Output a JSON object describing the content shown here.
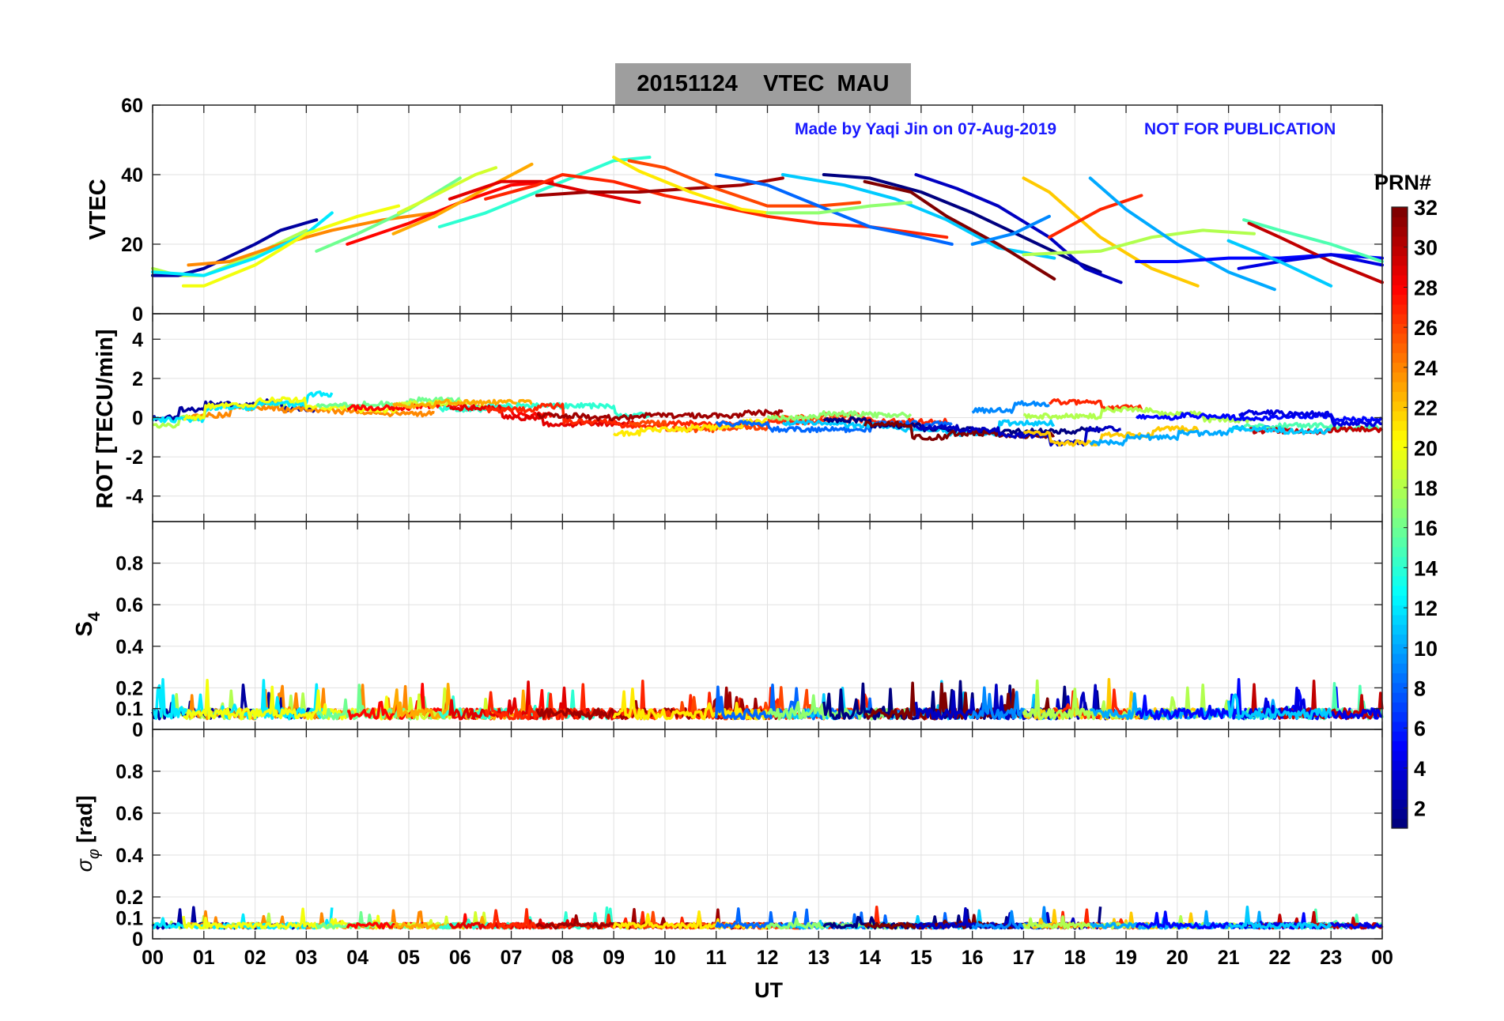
{
  "title": "20151124    VTEC  MAU",
  "annotation": {
    "credit": "Made by Yaqi Jin on 07-Aug-2019",
    "notice": "NOT FOR PUBLICATION",
    "color": "#1a1aff"
  },
  "colorbar": {
    "label": "PRN#",
    "ticks": [
      "2",
      "4",
      "6",
      "8",
      "10",
      "12",
      "14",
      "16",
      "18",
      "20",
      "22",
      "24",
      "26",
      "28",
      "30",
      "32"
    ],
    "colormap": "jet",
    "range": [
      1,
      32
    ]
  },
  "xaxis": {
    "label": "UT",
    "ticks": [
      "00",
      "01",
      "02",
      "03",
      "04",
      "05",
      "06",
      "07",
      "08",
      "09",
      "10",
      "11",
      "12",
      "13",
      "14",
      "15",
      "16",
      "17",
      "18",
      "19",
      "20",
      "21",
      "22",
      "23",
      "00"
    ],
    "range": [
      0,
      24
    ]
  },
  "panels": {
    "vtec": {
      "ylabel": "VTEC",
      "ylim": [
        0,
        60
      ],
      "yticks": [
        "0",
        "20",
        "40",
        "60"
      ]
    },
    "rot": {
      "ylabel": "ROT [TECU/min]",
      "ylim": [
        -5.3,
        5.3
      ],
      "yticks": [
        "-4",
        "-2",
        "0",
        "2",
        "4"
      ]
    },
    "s4": {
      "ylabel": "S",
      "ylabel_sub": "4",
      "ylim": [
        0,
        1
      ],
      "yticks": [
        "0",
        "0.1",
        "0.2",
        "0.4",
        "0.6",
        "0.8"
      ]
    },
    "sigma": {
      "ylabel_greek": "σ",
      "ylabel_sub": "φ",
      "ylabel_unit": " [rad]",
      "ylim": [
        0,
        1
      ],
      "yticks": [
        "0",
        "0.1",
        "0.2",
        "0.4",
        "0.6",
        "0.8"
      ]
    }
  },
  "chart_data": {
    "type": "line",
    "title": "20151124    VTEC  MAU",
    "xlabel": "UT",
    "x_range_hours": [
      0,
      24
    ],
    "grid": true,
    "color_by": "PRN#",
    "legend": "colorbar right",
    "series": [
      {
        "name": "PRN 18",
        "x": [
          0.0,
          0.5,
          1.0,
          2.0,
          3.0
        ],
        "vtec": [
          13,
          11,
          11,
          17,
          24
        ]
      },
      {
        "name": "PRN 2",
        "x": [
          0.0,
          0.5,
          1.0,
          2.0,
          2.5,
          3.2
        ],
        "vtec": [
          11,
          11,
          13,
          20,
          24,
          27
        ]
      },
      {
        "name": "PRN 24",
        "x": [
          0.7,
          1.5,
          2.5,
          3.5,
          4.5,
          5.5
        ],
        "vtec": [
          14,
          15,
          20,
          24,
          27,
          29
        ]
      },
      {
        "name": "PRN 12",
        "x": [
          0.0,
          1.0,
          2.0,
          3.0,
          3.5
        ],
        "vtec": [
          12,
          11,
          16,
          23,
          29
        ]
      },
      {
        "name": "PRN 20",
        "x": [
          0.6,
          1.0,
          2.0,
          3.0,
          4.0,
          4.8
        ],
        "vtec": [
          8,
          8,
          14,
          23,
          28,
          31
        ]
      },
      {
        "name": "PRN 16",
        "x": [
          3.2,
          4.0,
          5.0,
          6.0
        ],
        "vtec": [
          18,
          23,
          30,
          39
        ]
      },
      {
        "name": "PRN 28",
        "x": [
          3.8,
          5.0,
          6.0,
          7.0,
          7.8
        ],
        "vtec": [
          20,
          26,
          32,
          37,
          38
        ]
      },
      {
        "name": "PRN 19",
        "x": [
          4.8,
          5.5,
          6.3,
          6.7
        ],
        "vtec": [
          29,
          34,
          40,
          42
        ]
      },
      {
        "name": "PRN 23",
        "x": [
          4.7,
          5.5,
          6.5,
          7.4
        ],
        "vtec": [
          23,
          28,
          36,
          43
        ]
      },
      {
        "name": "PRN 14",
        "x": [
          5.6,
          6.5,
          7.5,
          8.5,
          9.0,
          9.7
        ],
        "vtec": [
          25,
          29,
          35,
          41,
          44,
          45
        ]
      },
      {
        "name": "PRN 29",
        "x": [
          5.8,
          6.8,
          7.6,
          8.5,
          9.5
        ],
        "vtec": [
          33,
          38,
          38,
          35,
          32
        ]
      },
      {
        "name": "PRN 27",
        "x": [
          6.5,
          7.5,
          8.0,
          9.0,
          10.0,
          11.0,
          12.0,
          13.0,
          14.0,
          15.0,
          15.5
        ],
        "vtec": [
          33,
          37,
          40,
          38,
          34,
          31,
          28,
          26,
          25,
          23,
          22
        ]
      },
      {
        "name": "PRN 31",
        "x": [
          7.5,
          8.5,
          9.5,
          10.5,
          11.5,
          12.3
        ],
        "vtec": [
          34,
          35,
          35,
          36,
          37,
          39
        ]
      },
      {
        "name": "PRN 26",
        "x": [
          9.3,
          10.0,
          11.0,
          12.0,
          13.0,
          13.8
        ],
        "vtec": [
          44,
          42,
          36,
          31,
          31,
          32
        ]
      },
      {
        "name": "PRN 21",
        "x": [
          9.0,
          9.5,
          10.5,
          11.5,
          12.0
        ],
        "vtec": [
          45,
          41,
          35,
          30,
          29
        ]
      },
      {
        "name": "PRN 8",
        "x": [
          11.0,
          12.0,
          13.0,
          14.0,
          15.0,
          15.6
        ],
        "vtec": [
          40,
          37,
          31,
          25,
          22,
          20
        ]
      },
      {
        "name": "PRN 11",
        "x": [
          12.3,
          13.5,
          14.5,
          15.5,
          16.5,
          17.6
        ],
        "vtec": [
          40,
          37,
          33,
          27,
          19,
          16
        ]
      },
      {
        "name": "PRN 17",
        "x": [
          12.0,
          13.0,
          14.0,
          14.8
        ],
        "vtec": [
          29,
          29,
          31,
          32
        ]
      },
      {
        "name": "PRN 1",
        "x": [
          13.1,
          14.0,
          15.0,
          16.0,
          17.0,
          18.0,
          18.5
        ],
        "vtec": [
          40,
          39,
          35,
          29,
          22,
          15,
          12
        ]
      },
      {
        "name": "PRN 32",
        "x": [
          13.9,
          14.8,
          15.5,
          16.5,
          17.6
        ],
        "vtec": [
          38,
          35,
          28,
          20,
          10
        ]
      },
      {
        "name": "PRN 3",
        "x": [
          14.9,
          15.7,
          16.5,
          17.5,
          18.2,
          18.9
        ],
        "vtec": [
          40,
          36,
          31,
          22,
          13,
          9
        ]
      },
      {
        "name": "PRN 9",
        "x": [
          16.0,
          16.8,
          17.5
        ],
        "vtec": [
          20,
          23,
          28
        ]
      },
      {
        "name": "PRN 22",
        "x": [
          17.0,
          17.5,
          18.5,
          19.5,
          20.4
        ],
        "vtec": [
          39,
          35,
          22,
          13,
          8
        ]
      },
      {
        "name": "PRN 27b",
        "x": [
          17.5,
          18.5,
          19.3
        ],
        "vtec": [
          22,
          30,
          34
        ]
      },
      {
        "name": "PRN 18b",
        "x": [
          17.0,
          18.5,
          19.5,
          20.5,
          21.5
        ],
        "vtec": [
          17,
          18,
          22,
          24,
          23
        ]
      },
      {
        "name": "PRN 10",
        "x": [
          18.3,
          19.0,
          20.0,
          21.0,
          21.9
        ],
        "vtec": [
          39,
          30,
          20,
          12,
          7
        ]
      },
      {
        "name": "PRN 5",
        "x": [
          19.2,
          20.0,
          21.0,
          22.0,
          23.0,
          24.0
        ],
        "vtec": [
          15,
          15,
          16,
          16,
          17,
          16
        ]
      },
      {
        "name": "PRN 15",
        "x": [
          21.3,
          22.0,
          23.0,
          24.0
        ],
        "vtec": [
          27,
          24,
          20,
          15
        ]
      },
      {
        "name": "PRN 30",
        "x": [
          21.4,
          22.0,
          23.0,
          24.0
        ],
        "vtec": [
          26,
          22,
          15,
          9
        ]
      },
      {
        "name": "PRN 4",
        "x": [
          21.2,
          22.0,
          23.0,
          24.0
        ],
        "vtec": [
          13,
          15,
          17,
          14
        ]
      },
      {
        "name": "PRN 11b",
        "x": [
          21.0,
          22.0,
          23.0
        ],
        "vtec": [
          21,
          15,
          8
        ]
      }
    ]
  }
}
